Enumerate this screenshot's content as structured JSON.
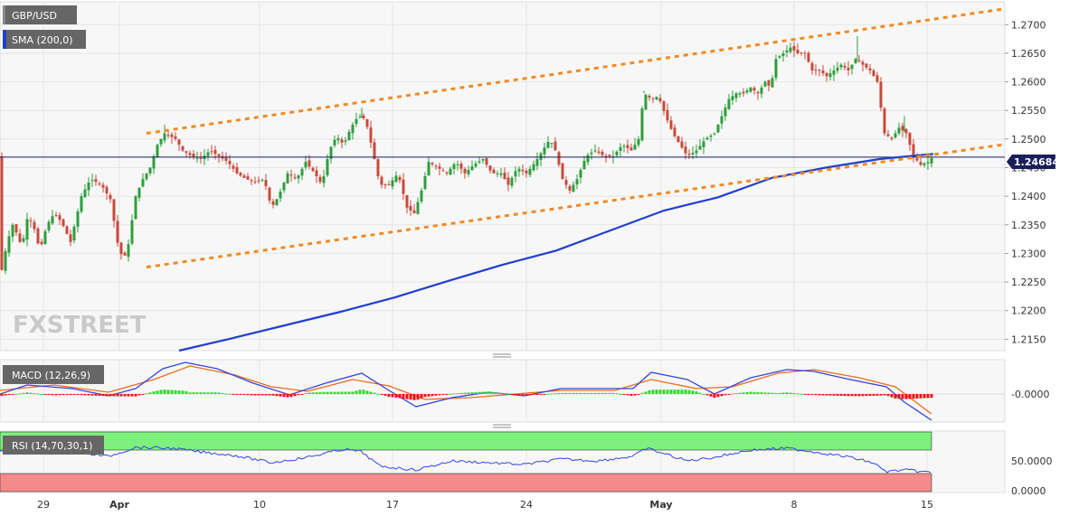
{
  "chart_data": {
    "type": "candlestick",
    "symbol": "GBP/USD",
    "indicator_label": "SMA (200,0)",
    "macd_label": "MACD (12,26,9)",
    "rsi_label": "RSI (14,70,30,1)",
    "watermark": "FXSTREET",
    "current_price": "1.24684",
    "price_axis": {
      "ticks": [
        "1.2700",
        "1.2650",
        "1.2600",
        "1.2550",
        "1.2500",
        "1.2450",
        "1.2400",
        "1.2350",
        "1.2300",
        "1.2250",
        "1.2200",
        "1.2150"
      ],
      "range": [
        1.213,
        1.274
      ]
    },
    "macd_axis": {
      "ticks": [
        "-0.0000"
      ]
    },
    "rsi_axis": {
      "ticks": [
        "50.0000",
        "0.0000"
      ],
      "overbought": 70,
      "oversold": 30
    },
    "date_labels": [
      {
        "text": "29",
        "bold": false
      },
      {
        "text": "Apr",
        "bold": true
      },
      {
        "text": "10",
        "bold": false
      },
      {
        "text": "17",
        "bold": false
      },
      {
        "text": "24",
        "bold": false
      },
      {
        "text": "May",
        "bold": true
      },
      {
        "text": "8",
        "bold": false
      },
      {
        "text": "15",
        "bold": false
      }
    ],
    "sma_200": [
      1.213,
      1.2152,
      1.2175,
      1.2198,
      1.2223,
      1.2252,
      1.228,
      1.2305,
      1.234,
      1.2375,
      1.2398,
      1.2432,
      1.245,
      1.2465,
      1.2474
    ],
    "channel_upper": [
      1.251,
      1.2727
    ],
    "channel_lower": [
      1.2276,
      1.249
    ],
    "colors": {
      "up": "#2e9e3e",
      "down": "#c94a3c",
      "sma": "#1f3fd0",
      "channel": "#f08a24",
      "macd_line": "#3344dd",
      "signal_line": "#ee6a1a",
      "hist_up": "#2edb2e",
      "hist_down": "#ee1111",
      "rsi_line": "#3344dd",
      "rsi_overbought_fill": "#7ef07e",
      "rsi_oversold_fill": "#f58a8a",
      "label_bg": "#666666",
      "sma_swatch": "#1f3fd0"
    }
  }
}
